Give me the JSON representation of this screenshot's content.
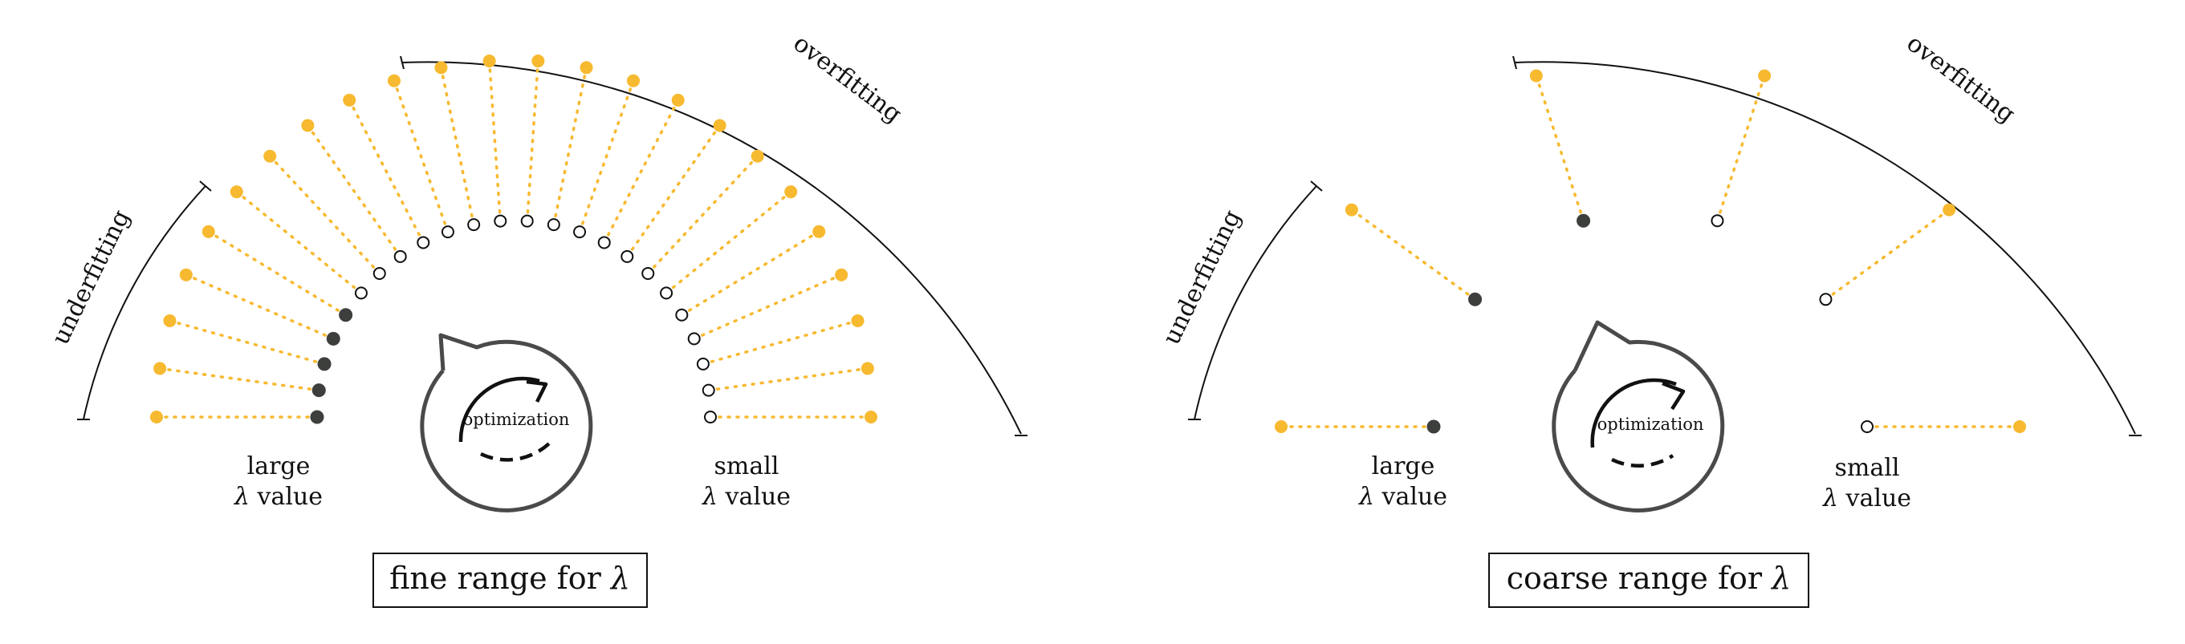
{
  "colors": {
    "accent": "#f7b92f",
    "dark_dot": "#3d3f3d",
    "ink": "#111111",
    "cycle": "#4a4a4a"
  },
  "panels": [
    {
      "id": "fine",
      "caption_prefix": "fine range for ",
      "caption_symbol": "λ",
      "cycle_label": "optimization",
      "cycle_icon": "rotation-arrow-icon",
      "arc_labels": {
        "underfitting": "underfitting",
        "overfitting": "overfitting"
      },
      "left_label": {
        "line1": "large",
        "symbol": "λ",
        "line2": " value"
      },
      "right_label": {
        "line1": "small",
        "symbol": "λ",
        "line2": " value"
      },
      "pairs_count": 24,
      "underfit_count": 5,
      "gap_after_underfit": false
    },
    {
      "id": "coarse",
      "caption_prefix": "coarse range for ",
      "caption_symbol": "λ",
      "cycle_label": "optimization",
      "cycle_icon": "rotation-arrow-icon",
      "arc_labels": {
        "underfitting": "underfitting",
        "overfitting": "overfitting"
      },
      "left_label": {
        "line1": "large",
        "symbol": "λ",
        "line2": " value"
      },
      "right_label": {
        "line1": "small",
        "symbol": "λ",
        "line2": " value"
      },
      "pairs_count": 6,
      "underfit_count": 3,
      "gap_after_underfit": false
    }
  ]
}
